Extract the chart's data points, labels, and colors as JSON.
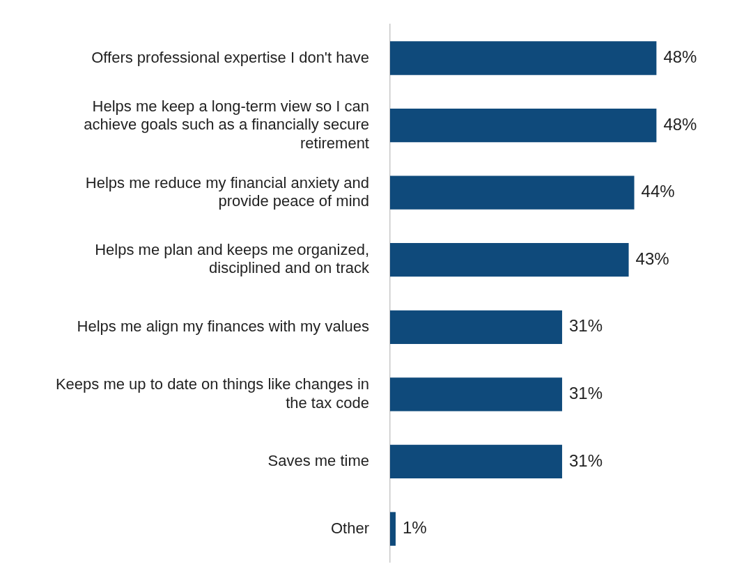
{
  "chart_data": {
    "type": "bar",
    "orientation": "horizontal",
    "categories": [
      "Offers professional expertise I don't have",
      "Helps me keep a long-term view so I can achieve goals such as a financially secure retirement",
      "Helps me reduce my financial anxiety and provide peace of mind",
      "Helps me plan and keeps me organized, disciplined and on track",
      "Helps me align my finances with my values",
      "Keeps me up to date on things like changes in the tax code",
      "Saves me time",
      "Other"
    ],
    "values": [
      48,
      48,
      44,
      43,
      31,
      31,
      31,
      1
    ],
    "value_labels": [
      "48%",
      "48%",
      "44%",
      "43%",
      "31%",
      "31%",
      "31%",
      "1%"
    ],
    "color": "#0f4a7b",
    "legend": false,
    "tick_labels": "y"
  }
}
